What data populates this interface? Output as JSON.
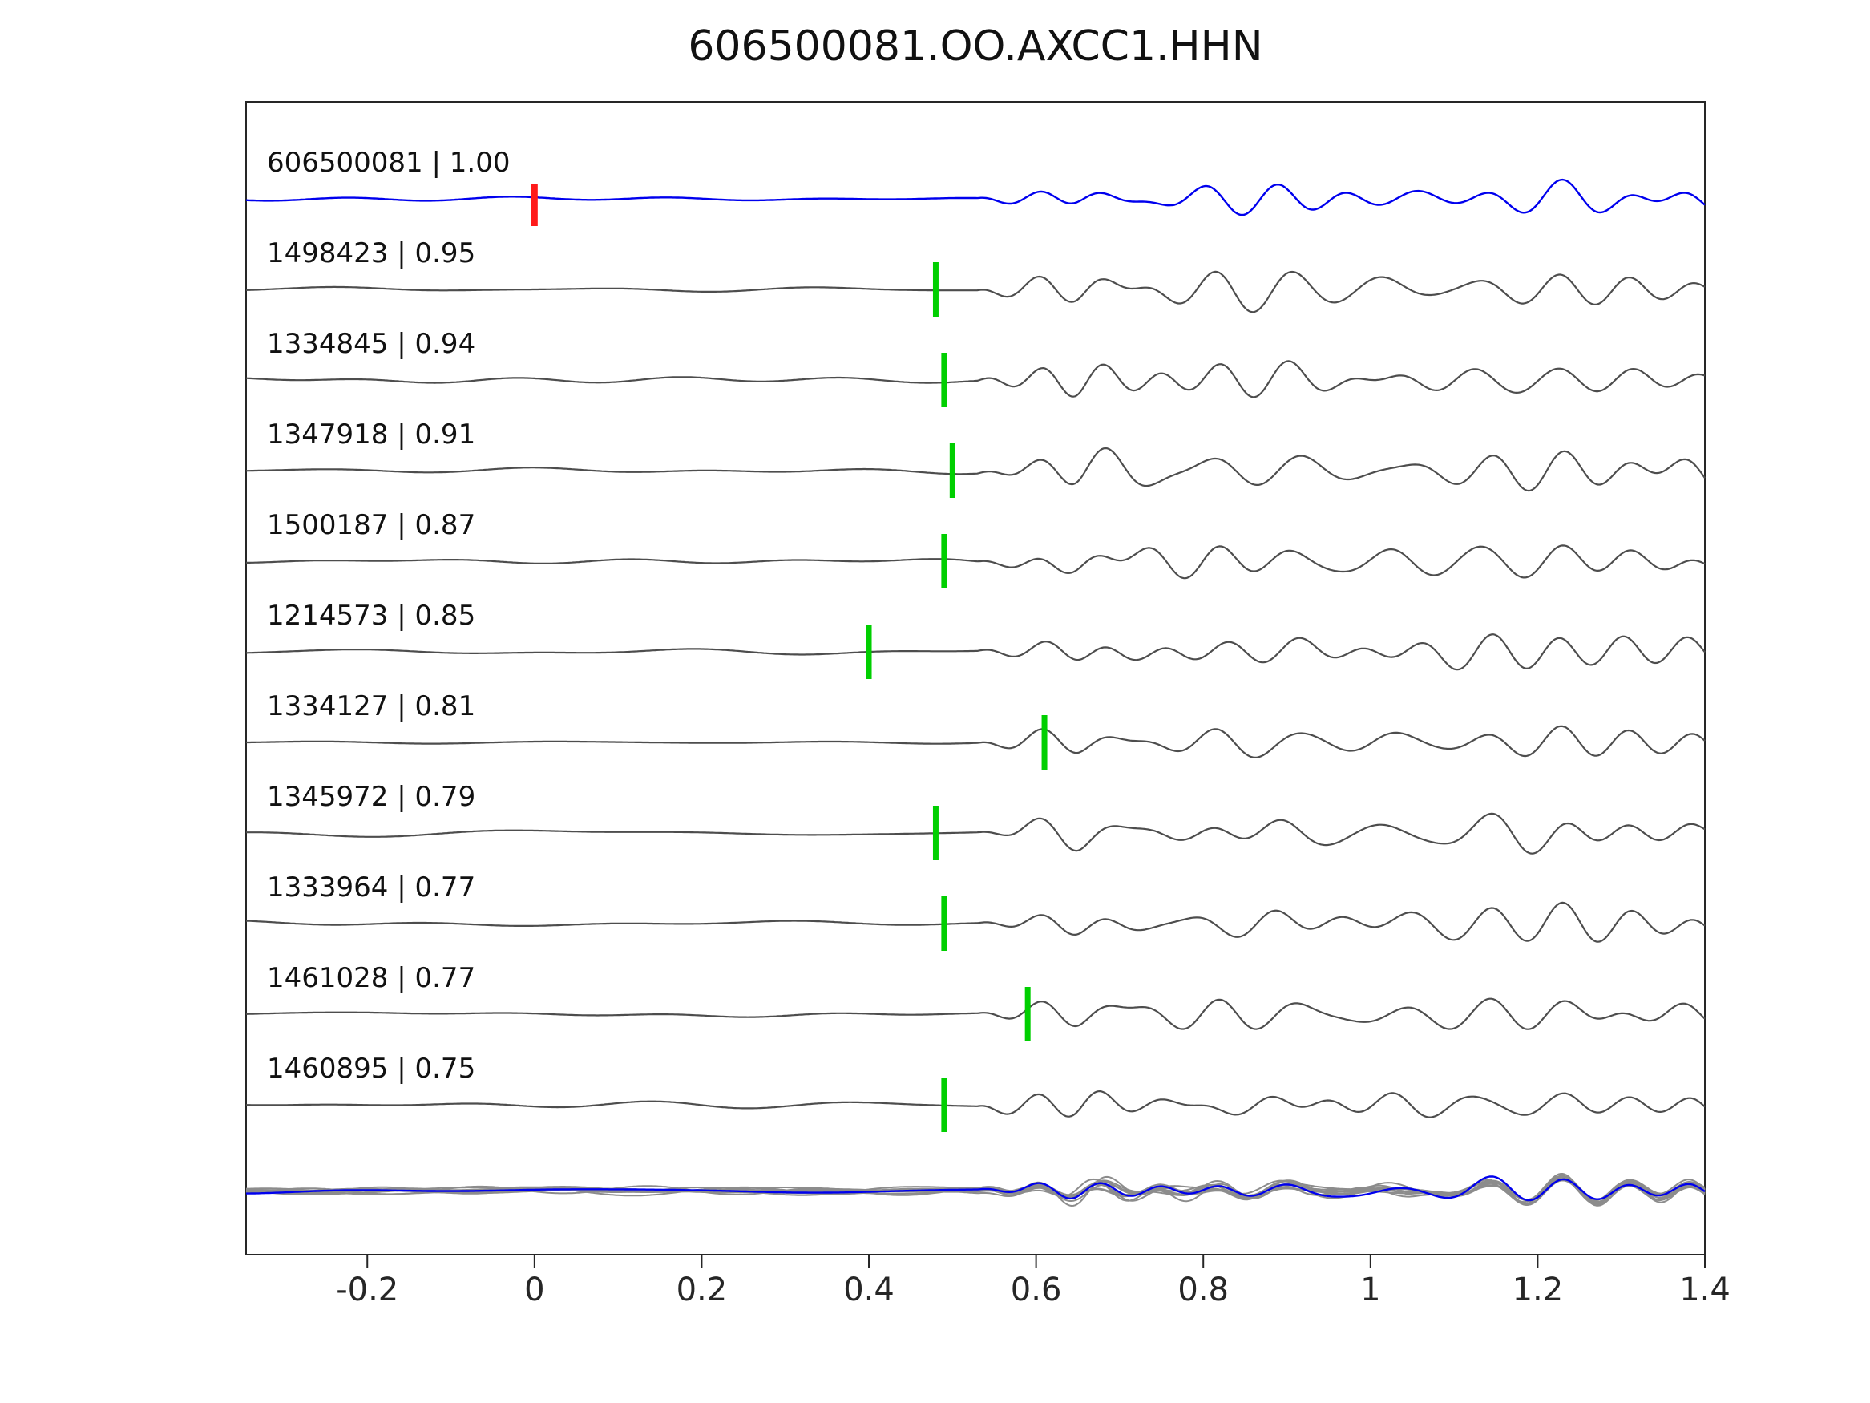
{
  "title": "606500081.OO.AXCC1.HHN",
  "chart_data": {
    "type": "line",
    "title": "606500081.OO.AXCC1.HHN",
    "xlabel": "",
    "ylabel": "",
    "xlim": [
      -0.345,
      1.4
    ],
    "x_ticks": [
      -0.2,
      0,
      0.2,
      0.4,
      0.6,
      0.8,
      1,
      1.2,
      1.4
    ],
    "x_tick_labels": [
      "-0.2",
      "0",
      "0.2",
      "0.4",
      "0.6",
      "0.8",
      "1",
      "1.2",
      "1.4"
    ],
    "grid": false,
    "legend": null,
    "colors": {
      "template_trace": "#0000ee",
      "match_trace": "#4d4d4d",
      "overlay_trace": "#8c8c8c",
      "pick_marker": "#00cf00",
      "origin_marker": "#ff1a1a",
      "axes_border": "#262626"
    },
    "traces": [
      {
        "id": "606500081",
        "correlation": 1.0,
        "label": "606500081 | 1.00",
        "role": "template",
        "origin_marker_x": 0.0,
        "pick_x": null
      },
      {
        "id": "1498423",
        "correlation": 0.95,
        "label": "1498423 | 0.95",
        "role": "match",
        "pick_x": 0.48
      },
      {
        "id": "1334845",
        "correlation": 0.94,
        "label": "1334845 | 0.94",
        "role": "match",
        "pick_x": 0.49
      },
      {
        "id": "1347918",
        "correlation": 0.91,
        "label": "1347918 | 0.91",
        "role": "match",
        "pick_x": 0.5
      },
      {
        "id": "1500187",
        "correlation": 0.87,
        "label": "1500187 | 0.87",
        "role": "match",
        "pick_x": 0.49
      },
      {
        "id": "1214573",
        "correlation": 0.85,
        "label": "1214573 | 0.85",
        "role": "match",
        "pick_x": 0.4
      },
      {
        "id": "1334127",
        "correlation": 0.81,
        "label": "1334127 | 0.81",
        "role": "match",
        "pick_x": 0.61
      },
      {
        "id": "1345972",
        "correlation": 0.79,
        "label": "1345972 | 0.79",
        "role": "match",
        "pick_x": 0.48
      },
      {
        "id": "1333964",
        "correlation": 0.77,
        "label": "1333964 | 0.77",
        "role": "match",
        "pick_x": 0.49
      },
      {
        "id": "1461028",
        "correlation": 0.77,
        "label": "1461028 | 0.77",
        "role": "match",
        "pick_x": 0.59
      },
      {
        "id": "1460895",
        "correlation": 0.75,
        "label": "1460895 | 0.75",
        "role": "match",
        "pick_x": 0.49
      }
    ],
    "overlay_row": {
      "contains": "all traces overlaid, template in blue over gray matches"
    },
    "waveform_estimate": {
      "signal_onset_x": 0.53,
      "dominant_period_x": 0.09,
      "pre_onset_noise_relative_amp": 0.12,
      "envelope": "fast rise after onset, slow decay through x = 1.4"
    }
  }
}
